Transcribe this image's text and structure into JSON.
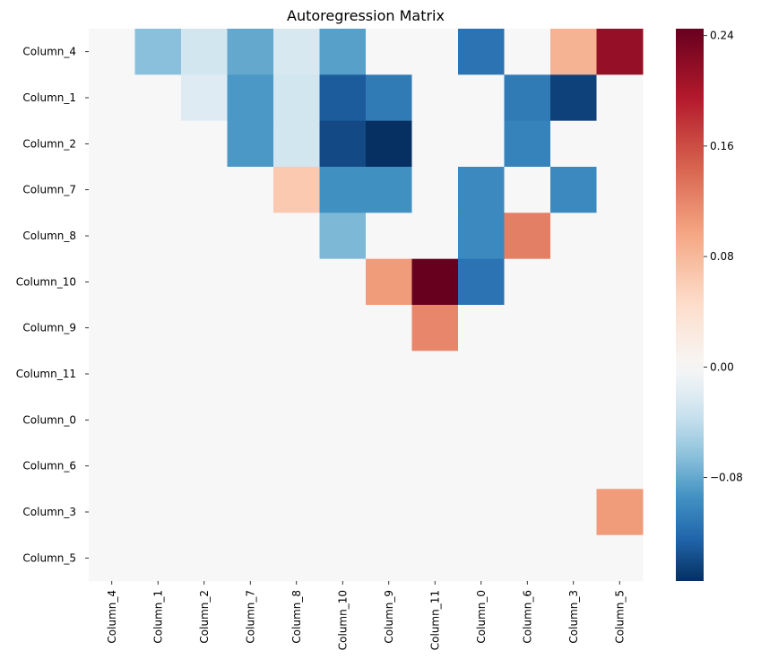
{
  "chart_data": {
    "type": "heatmap",
    "title": "Autoregression Matrix",
    "rows": [
      "Column_4",
      "Column_1",
      "Column_2",
      "Column_7",
      "Column_8",
      "Column_10",
      "Column_9",
      "Column_11",
      "Column_0",
      "Column_6",
      "Column_3",
      "Column_5"
    ],
    "columns": [
      "Column_4",
      "Column_1",
      "Column_2",
      "Column_7",
      "Column_8",
      "Column_10",
      "Column_9",
      "Column_11",
      "Column_0",
      "Column_6",
      "Column_3",
      "Column_5"
    ],
    "values": [
      [
        0,
        -0.065,
        -0.03,
        -0.08,
        -0.025,
        -0.085,
        0,
        0,
        -0.115,
        0,
        0.085,
        0.215
      ],
      [
        0,
        0,
        -0.02,
        -0.09,
        -0.03,
        -0.13,
        -0.11,
        0,
        0,
        -0.11,
        -0.145,
        0
      ],
      [
        0,
        0,
        0,
        -0.09,
        -0.03,
        -0.14,
        -0.155,
        0,
        0,
        -0.105,
        0,
        0
      ],
      [
        0,
        0,
        0,
        0,
        0.065,
        -0.095,
        -0.095,
        0,
        -0.1,
        0,
        -0.1,
        0
      ],
      [
        0,
        0,
        0,
        0,
        0,
        -0.07,
        0,
        0,
        -0.1,
        0.125,
        0,
        0
      ],
      [
        0,
        0,
        0,
        0,
        0,
        0,
        0.105,
        0.245,
        -0.115,
        0,
        0,
        0
      ],
      [
        0,
        0,
        0,
        0,
        0,
        0,
        0,
        0.12,
        0,
        0,
        0,
        0
      ],
      [
        0,
        0,
        0,
        0,
        0,
        0,
        0,
        0,
        0,
        0,
        0,
        0
      ],
      [
        0,
        0,
        0,
        0,
        0,
        0,
        0,
        0,
        0,
        0,
        0,
        0
      ],
      [
        0,
        0,
        0,
        0,
        0,
        0,
        0,
        0,
        0,
        0,
        0,
        0
      ],
      [
        0,
        0,
        0,
        0,
        0,
        0,
        0,
        0,
        0,
        0,
        0,
        0.105
      ],
      [
        0,
        0,
        0,
        0,
        0,
        0,
        0,
        0,
        0,
        0,
        0,
        0
      ]
    ],
    "colorbar": {
      "colormap": "RdBu_r",
      "range": [
        -0.155,
        0.245
      ],
      "ticks": [
        -0.08,
        0,
        0.08,
        0.16,
        0.24
      ],
      "tick_labels": [
        "−0.08",
        "0.00",
        "0.08",
        "0.16",
        "0.24"
      ]
    }
  }
}
